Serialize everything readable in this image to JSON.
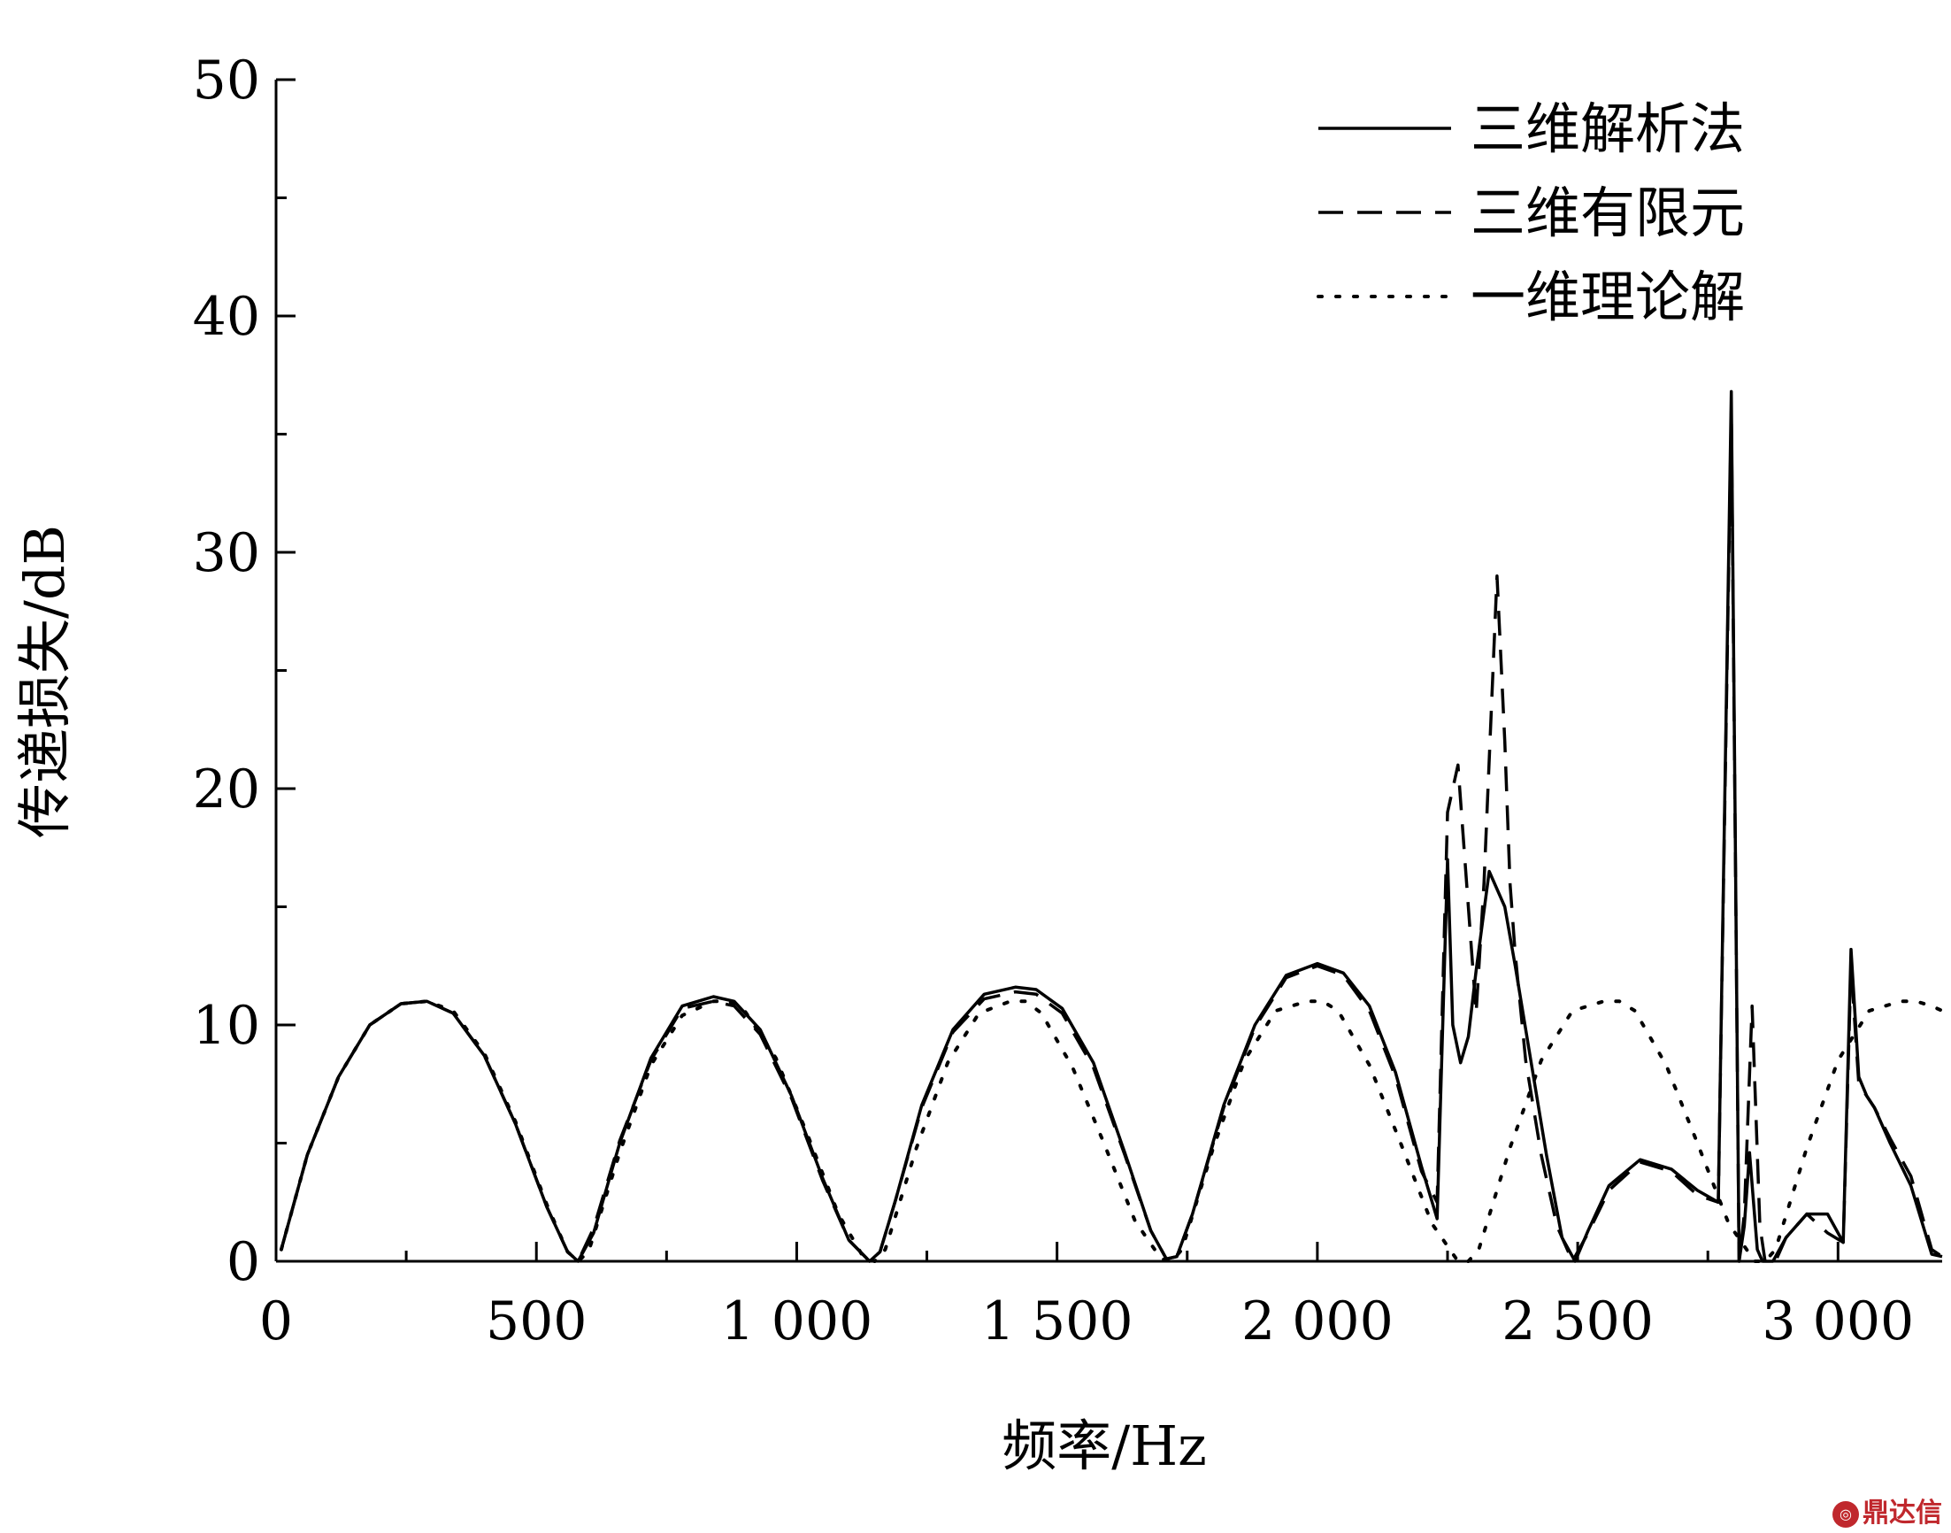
{
  "chart_data": {
    "type": "line",
    "xlabel": "频率/Hz",
    "ylabel": "传递损失/dB",
    "xlim": [
      0,
      3200
    ],
    "ylim": [
      0,
      50
    ],
    "x_ticks": [
      0,
      500,
      1000,
      1500,
      2000,
      2500,
      3000
    ],
    "x_tick_labels": [
      "0",
      "500",
      "1 000",
      "1 500",
      "2 000",
      "2 500",
      "3 000"
    ],
    "y_ticks": [
      0,
      10,
      20,
      30,
      40,
      50
    ],
    "y_tick_labels": [
      "0",
      "10",
      "20",
      "30",
      "40",
      "50"
    ],
    "grid": false,
    "legend_position": "top-right",
    "series": [
      {
        "name": "三维解析法",
        "style": "solid",
        "x": [
          10,
          60,
          120,
          180,
          240,
          290,
          340,
          400,
          460,
          520,
          560,
          580,
          610,
          660,
          720,
          780,
          840,
          880,
          930,
          990,
          1050,
          1100,
          1140,
          1160,
          1190,
          1240,
          1300,
          1360,
          1420,
          1460,
          1510,
          1570,
          1630,
          1680,
          1710,
          1730,
          1760,
          1820,
          1880,
          1940,
          2000,
          2050,
          2100,
          2150,
          2200,
          2230,
          2250,
          2260,
          2275,
          2290,
          2305,
          2330,
          2360,
          2380,
          2410,
          2440,
          2470,
          2495,
          2520,
          2560,
          2620,
          2680,
          2730,
          2770,
          2795,
          2810,
          2820,
          2830,
          2845,
          2855,
          2875,
          2900,
          2940,
          2980,
          3010,
          3025,
          3040,
          3055,
          3070,
          3100,
          3140,
          3180,
          3200
        ],
        "y": [
          0.5,
          4.5,
          7.8,
          10.0,
          10.9,
          11.0,
          10.5,
          8.7,
          5.8,
          2.3,
          0.4,
          0.0,
          1.2,
          5.0,
          8.6,
          10.8,
          11.2,
          11.0,
          9.8,
          7.0,
          3.5,
          0.9,
          0.0,
          0.4,
          2.6,
          6.6,
          9.8,
          11.3,
          11.6,
          11.5,
          10.7,
          8.4,
          4.6,
          1.3,
          0.1,
          0.2,
          2.0,
          6.6,
          10.0,
          12.1,
          12.6,
          12.2,
          10.8,
          8.0,
          4.0,
          1.8,
          17.0,
          10.0,
          8.4,
          9.5,
          12.3,
          16.5,
          15.0,
          12.5,
          8.5,
          4.5,
          1.0,
          0.0,
          1.3,
          3.2,
          4.3,
          3.9,
          3.0,
          2.5,
          36.8,
          0.0,
          1.5,
          4.6,
          0.5,
          0.0,
          0.0,
          1.0,
          2.0,
          2.0,
          0.8,
          13.2,
          7.8,
          7.0,
          6.5,
          5.0,
          3.2,
          0.3,
          0.2
        ]
      },
      {
        "name": "三维有限元",
        "style": "dashed",
        "x": [
          10,
          60,
          120,
          180,
          240,
          290,
          340,
          400,
          460,
          520,
          560,
          580,
          610,
          660,
          720,
          780,
          840,
          880,
          930,
          990,
          1050,
          1100,
          1140,
          1160,
          1190,
          1240,
          1300,
          1360,
          1420,
          1460,
          1510,
          1570,
          1630,
          1680,
          1710,
          1730,
          1760,
          1820,
          1880,
          1940,
          2000,
          2050,
          2100,
          2150,
          2200,
          2230,
          2250,
          2270,
          2290,
          2305,
          2320,
          2345,
          2360,
          2370,
          2380,
          2400,
          2430,
          2460,
          2490,
          2520,
          2560,
          2620,
          2680,
          2730,
          2770,
          2795,
          2810,
          2820,
          2835,
          2850,
          2860,
          2880,
          2900,
          2940,
          2980,
          3010,
          3025,
          3040,
          3070,
          3100,
          3140,
          3180,
          3200
        ],
        "y": [
          0.5,
          4.5,
          7.8,
          10.0,
          10.9,
          11.0,
          10.5,
          8.7,
          5.8,
          2.3,
          0.4,
          0.0,
          1.4,
          5.1,
          8.5,
          10.7,
          11.0,
          10.8,
          9.6,
          6.9,
          3.4,
          0.9,
          0.0,
          0.4,
          2.6,
          6.5,
          9.7,
          11.1,
          11.4,
          11.3,
          10.5,
          8.2,
          4.5,
          1.3,
          0.1,
          0.2,
          2.0,
          6.5,
          9.9,
          12.0,
          12.5,
          12.1,
          10.6,
          7.8,
          3.8,
          2.5,
          19.0,
          21.0,
          15.0,
          10.5,
          16.0,
          29.0,
          22.0,
          16.0,
          13.0,
          8.5,
          4.5,
          1.5,
          0.0,
          1.2,
          3.0,
          4.2,
          3.8,
          2.8,
          2.5,
          36.0,
          0.0,
          2.0,
          10.8,
          1.5,
          0.0,
          0.0,
          1.0,
          2.0,
          1.2,
          0.8,
          12.5,
          7.5,
          6.5,
          5.2,
          3.6,
          0.5,
          0.2
        ]
      },
      {
        "name": "一维理论解",
        "style": "dotted",
        "x": [
          10,
          60,
          120,
          180,
          240,
          290,
          340,
          400,
          460,
          520,
          560,
          580,
          600,
          660,
          720,
          780,
          840,
          870,
          900,
          960,
          1020,
          1080,
          1130,
          1150,
          1170,
          1230,
          1290,
          1350,
          1410,
          1440,
          1470,
          1530,
          1590,
          1650,
          1700,
          1720,
          1740,
          1800,
          1860,
          1920,
          1980,
          2010,
          2040,
          2100,
          2160,
          2220,
          2270,
          2290,
          2310,
          2370,
          2430,
          2490,
          2550,
          2580,
          2610,
          2670,
          2730,
          2790,
          2840,
          2860,
          2880,
          2940,
          3000,
          3060,
          3120,
          3150,
          3180,
          3200
        ],
        "y": [
          0.5,
          4.5,
          7.8,
          10.0,
          10.9,
          11.0,
          10.6,
          8.8,
          5.9,
          2.4,
          0.4,
          0.0,
          0.4,
          4.6,
          8.3,
          10.4,
          11.0,
          11.0,
          10.6,
          8.6,
          5.4,
          2.0,
          0.1,
          0.0,
          0.5,
          4.8,
          8.4,
          10.5,
          11.0,
          11.0,
          10.5,
          8.2,
          5.0,
          1.7,
          0.1,
          0.0,
          0.5,
          4.8,
          8.5,
          10.6,
          11.0,
          11.0,
          10.6,
          8.3,
          5.0,
          1.6,
          0.0,
          0.0,
          0.5,
          4.8,
          8.5,
          10.6,
          11.0,
          11.0,
          10.6,
          8.3,
          5.0,
          1.6,
          0.0,
          0.0,
          0.5,
          4.8,
          8.5,
          10.6,
          11.0,
          11.0,
          10.8,
          10.6
        ]
      }
    ]
  },
  "watermark": {
    "text": "鼎达信",
    "color": "#c0282d"
  }
}
